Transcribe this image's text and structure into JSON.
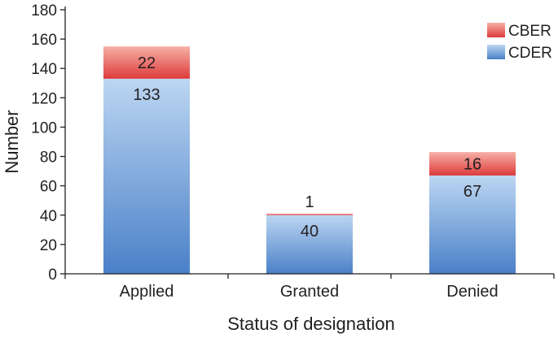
{
  "chart_data": {
    "type": "bar",
    "stacked": true,
    "categories": [
      "Applied",
      "Granted",
      "Denied"
    ],
    "series": [
      {
        "name": "CDER",
        "values": [
          133,
          40,
          67
        ],
        "color": "#5b8fd0",
        "color_light": "#bcd6f2"
      },
      {
        "name": "CBER",
        "values": [
          22,
          1,
          16
        ],
        "color": "#e24a4a",
        "color_light": "#f4a39b"
      }
    ],
    "xlabel": "Status of designation",
    "ylabel": "Number",
    "ylim": [
      0,
      180
    ],
    "yticks": [
      0,
      20,
      40,
      60,
      80,
      100,
      120,
      140,
      160,
      180
    ],
    "grid": false,
    "legend_position": "top-right"
  }
}
